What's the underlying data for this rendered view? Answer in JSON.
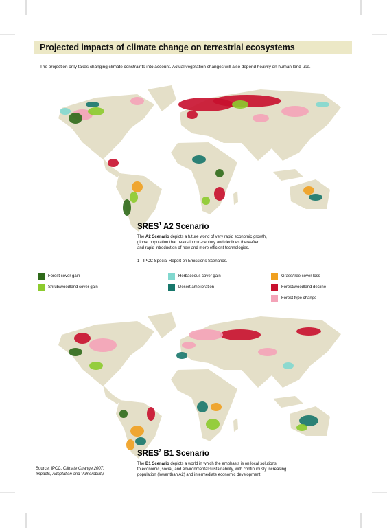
{
  "title": "Projected impacts of climate change on terrestrial ecosystems",
  "subtitle": "The projection only takes changing climate constraints into account. Actual vegetation changes will also depend heavily on human land use.",
  "scenarios": [
    {
      "heading": "SRES",
      "superscript": "1",
      "name": "A2 Scenario",
      "description": {
        "intro": "The",
        "bold": "A2 Scenario",
        "lines": [
          "depicts a future world of very rapid economic growth,",
          "global population that peaks in mid-century and declines thereafter,",
          "and rapid introduction of new and more efficient technologies."
        ]
      }
    },
    {
      "heading": "SRES",
      "superscript": "2",
      "name": "B1 Scenario",
      "description": {
        "intro": "The",
        "bold": "B1 Scenario",
        "lines": [
          "depicts a world in which the emphasis is on local solutions",
          "to economic, social, and environmental sustainability, with continuously increasing",
          "population (lower than A2) and intermediate economic development."
        ]
      }
    }
  ],
  "footnote": "1 - IPCC Special Report on Emissions Scenarios.",
  "legend": [
    {
      "label": "Forest cover gain",
      "color": "#2f6a1a"
    },
    {
      "label": "Shrub/woodland cover gain",
      "color": "#8ccb2e"
    },
    {
      "label": "Herbaceous cover gain",
      "color": "#82d8cf"
    },
    {
      "label": "Desert amelioration",
      "color": "#17776b"
    },
    {
      "label": "Grass/tree cover loss",
      "color": "#f0a020"
    },
    {
      "label": "Forest/woodland decline",
      "color": "#c8102e"
    },
    {
      "label": "Forest type change",
      "color": "#f4a3b8"
    }
  ],
  "source": {
    "prefix": "Source: IPCC,",
    "italic_1": "Climate Change 2007:",
    "italic_2": "Impacts, Adaptation and Vulnerability."
  }
}
